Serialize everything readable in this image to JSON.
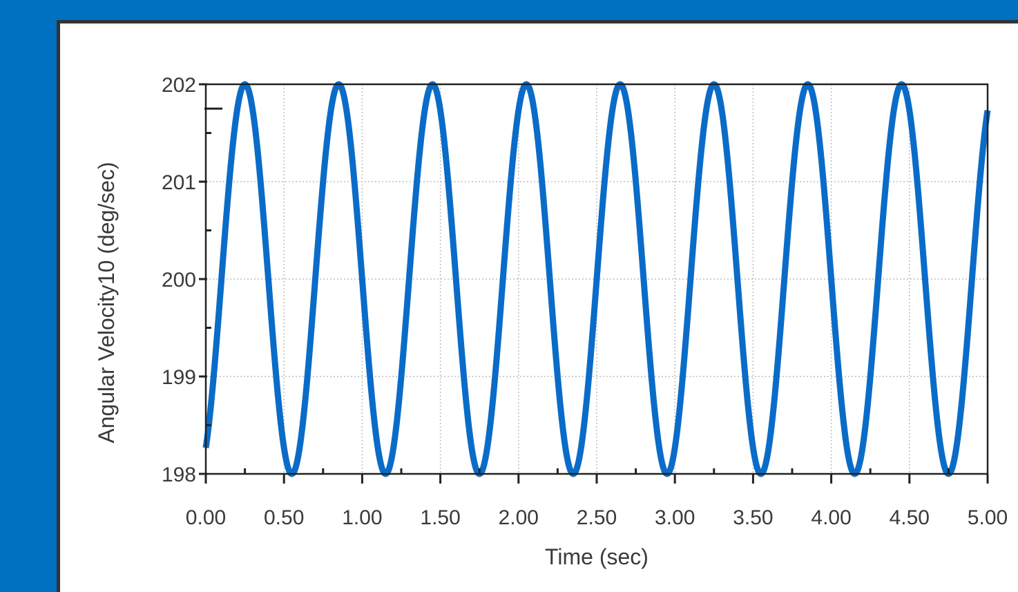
{
  "colors": {
    "frame_blue": "#0070c0",
    "series_line": "#0a6cc8",
    "grid": "#bdbdbd",
    "axis": "#222222",
    "text": "#3a3a3a"
  },
  "chart_data": {
    "type": "line",
    "xlabel": "Time (sec)",
    "ylabel": "Angular Velocity10 (deg/sec)",
    "xlim": [
      0,
      5
    ],
    "ylim": [
      198,
      202
    ],
    "x_ticks": [
      "0.00",
      "0.50",
      "1.00",
      "1.50",
      "2.00",
      "2.50",
      "3.00",
      "3.50",
      "4.00",
      "4.50",
      "5.00"
    ],
    "y_ticks": [
      "198",
      "199",
      "200",
      "201",
      "202"
    ],
    "grid": true,
    "legend": "none",
    "series": [
      {
        "description": "sinusoid",
        "mean": 200,
        "amplitude": 2,
        "period_sec": 0.6,
        "peaks_x": [
          0.25,
          0.85,
          1.45,
          2.05,
          2.65,
          3.25,
          3.85,
          4.45
        ],
        "troughs_x": [
          0.55,
          1.15,
          1.75,
          2.35,
          2.95,
          3.55,
          4.15,
          4.75
        ],
        "start": [
          0,
          198.3
        ],
        "end": [
          5,
          201.7
        ]
      }
    ]
  }
}
